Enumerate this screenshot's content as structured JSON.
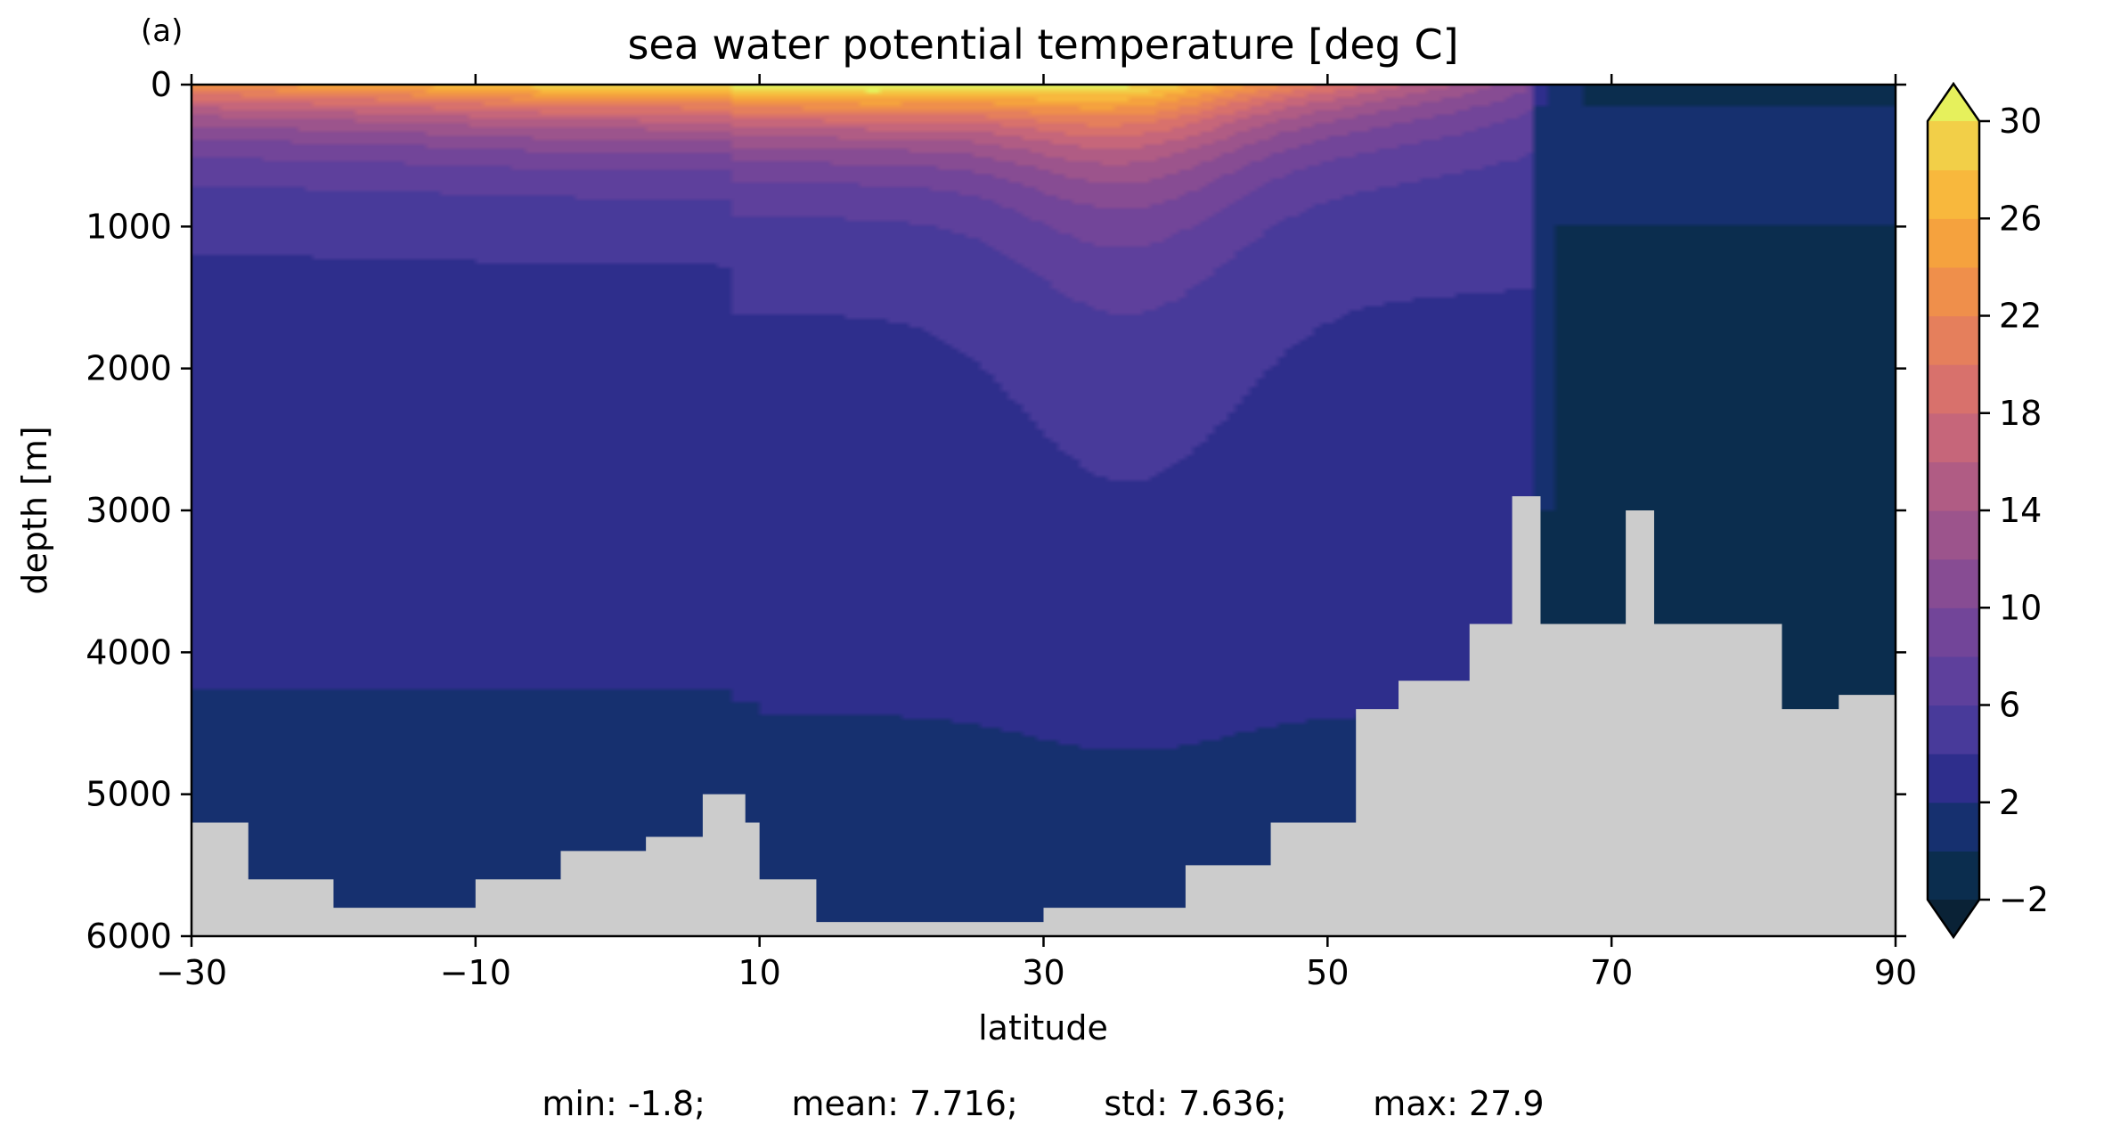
{
  "panel_label": "(a)",
  "stats_line": "min: -1.8;        mean: 7.716;        std: 7.636;        max: 27.9",
  "chart_data": {
    "type": "heatmap",
    "title": "sea water potential temperature [deg C]",
    "xlabel": "latitude",
    "ylabel": "depth [m]",
    "xlim": [
      -30,
      90
    ],
    "ylim": [
      6000,
      0
    ],
    "x_ticks": [
      -30,
      -10,
      10,
      30,
      50,
      70,
      90
    ],
    "x_tick_labels": [
      "−30",
      "−10",
      "10",
      "30",
      "50",
      "70",
      "90"
    ],
    "y_ticks": [
      0,
      1000,
      2000,
      3000,
      4000,
      5000,
      6000
    ],
    "y_tick_labels": [
      "0",
      "1000",
      "2000",
      "3000",
      "4000",
      "5000",
      "6000"
    ],
    "colorbar": {
      "levels": [
        -2,
        0,
        2,
        4,
        6,
        8,
        10,
        12,
        14,
        16,
        18,
        20,
        22,
        24,
        26,
        28,
        30
      ],
      "tick_values": [
        -2,
        2,
        6,
        10,
        14,
        18,
        22,
        26,
        30
      ],
      "tick_labels": [
        "−2",
        "2",
        "6",
        "10",
        "14",
        "18",
        "22",
        "26",
        "30"
      ],
      "extend": "both",
      "colors": [
        "#0b2d4e",
        "#16306f",
        "#2e2e8c",
        "#483a9a",
        "#5e409c",
        "#724599",
        "#874c93",
        "#9c548c",
        "#b05c84",
        "#c6667a",
        "#d8716c",
        "#e57f5c",
        "#ef8f4b",
        "#f5a23e",
        "#f8b83d",
        "#f2cf48"
      ],
      "under_color": "#0a2236",
      "over_color": "#e6f05c"
    },
    "land_color": "#cccccc",
    "surface_profile": {
      "lat": [
        -30,
        -15,
        -5,
        5,
        10,
        18,
        22,
        28,
        35,
        42,
        50,
        58,
        64,
        66,
        70,
        80,
        90
      ],
      "temp_C": [
        19,
        22,
        25,
        26,
        27,
        27.9,
        27,
        24,
        21,
        18,
        14,
        9,
        5,
        1,
        -1,
        -1.5,
        -1.6
      ]
    },
    "bottom_depth_profile": {
      "lat": [
        -30,
        -26,
        -20,
        -10,
        -4,
        2,
        6,
        9,
        10,
        14,
        20,
        30,
        40,
        46,
        52,
        55,
        60,
        63,
        65,
        68,
        71,
        73,
        80,
        82,
        86,
        90
      ],
      "depth_m": [
        5200,
        5600,
        5800,
        5600,
        5400,
        5300,
        5000,
        5200,
        5600,
        5900,
        5900,
        5800,
        5500,
        5200,
        4400,
        4200,
        3800,
        2900,
        3800,
        3800,
        3000,
        3800,
        3800,
        4400,
        4300,
        4400
      ]
    },
    "stats": {
      "min": -1.8,
      "mean": 7.716,
      "std": 7.636,
      "max": 27.9
    }
  }
}
